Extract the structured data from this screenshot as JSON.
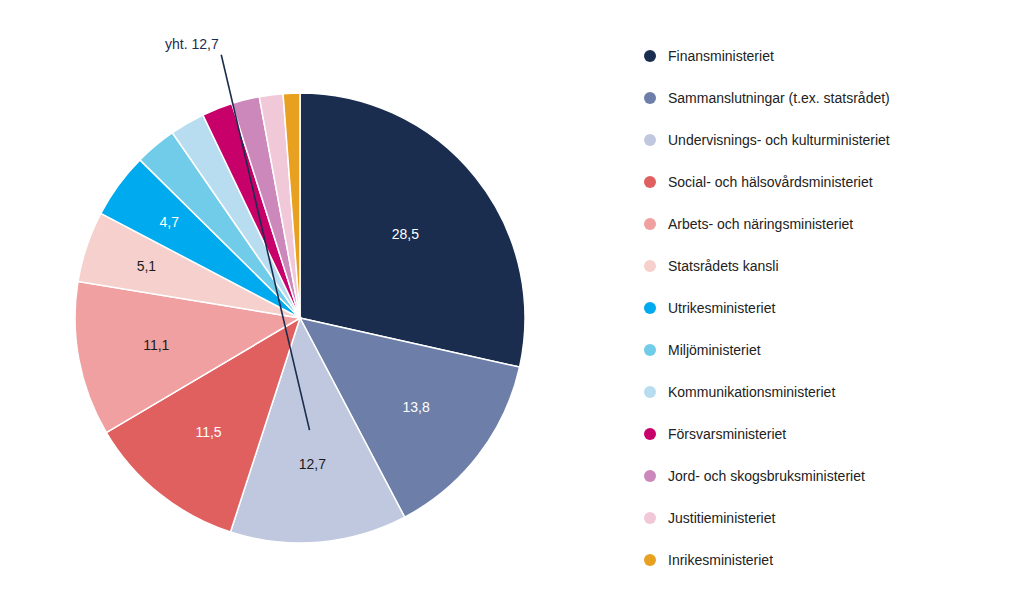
{
  "chart_data": {
    "type": "pie",
    "categories": [
      "Finansministeriet",
      "Sammanslutningar (t.ex. statsrådet)",
      "Undervisnings- och kulturministeriet",
      "Social- och hälsovårdsministeriet",
      "Arbets- och näringsministeriet",
      "Statsrådets kansli",
      "Utrikesministeriet",
      "Miljöministeriet",
      "Kommunikationsministeriet",
      "Försvarsministeriet",
      "Jord- och skogsbruksministeriet",
      "Justitieministeriet",
      "Inrikesministeriet"
    ],
    "values": [
      28.5,
      13.8,
      12.7,
      11.5,
      11.1,
      5.1,
      4.7,
      3.0,
      2.5,
      2.2,
      2.0,
      1.7,
      1.2
    ],
    "value_labels": [
      "28,5",
      "13,8",
      "12,7",
      "11,5",
      "11,1",
      "5,1",
      "4,7",
      null,
      null,
      null,
      null,
      null,
      null
    ],
    "colors": [
      "#1b2d4f",
      "#6d7fa8",
      "#bfc8de",
      "#e06060",
      "#f0a0a0",
      "#f5d0cc",
      "#00aaee",
      "#70cce8",
      "#b8ddf0",
      "#c8006a",
      "#cc88bb",
      "#f0c8d8",
      "#e8a020"
    ],
    "legend": "right",
    "annotations": [
      {
        "text": "yht. 12,7",
        "category": "Undervisnings- och kulturministeriet",
        "color": "#1b2d4f"
      }
    ]
  }
}
